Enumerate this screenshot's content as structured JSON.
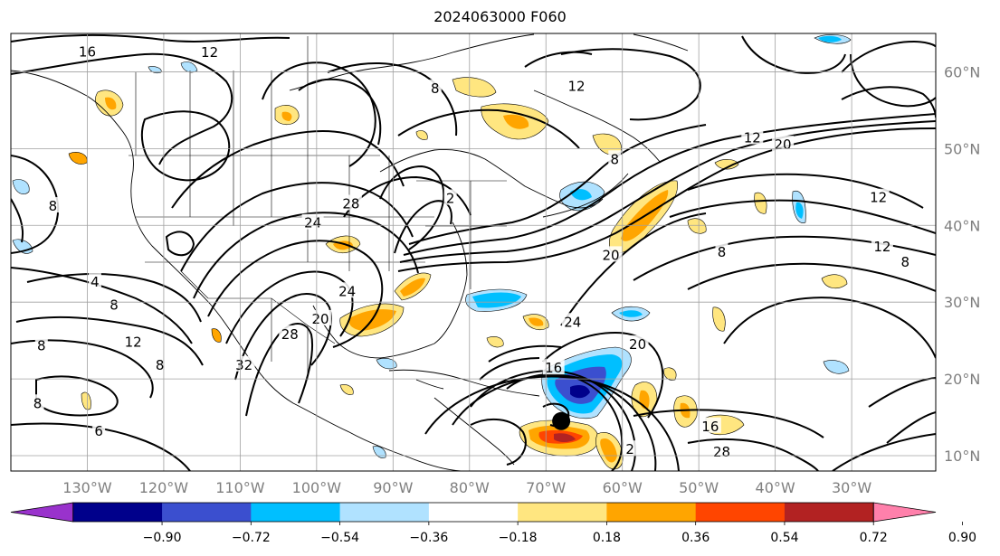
{
  "title": "2024063000 F060",
  "map": {
    "projection": "equirectangular",
    "lon_range": [
      -140,
      -19
    ],
    "lat_range": [
      8,
      65
    ],
    "lon_ticks": [
      {
        "value": -130,
        "label": "130°W"
      },
      {
        "value": -120,
        "label": "120°W"
      },
      {
        "value": -110,
        "label": "110°W"
      },
      {
        "value": -100,
        "label": "100°W"
      },
      {
        "value": -90,
        "label": "90°W"
      },
      {
        "value": -80,
        "label": "80°W"
      },
      {
        "value": -70,
        "label": "70°W"
      },
      {
        "value": -60,
        "label": "60°W"
      },
      {
        "value": -50,
        "label": "50°W"
      },
      {
        "value": -40,
        "label": "40°W"
      },
      {
        "value": -30,
        "label": "30°W"
      }
    ],
    "lat_ticks": [
      {
        "value": 60,
        "label": "60°N"
      },
      {
        "value": 50,
        "label": "50°N"
      },
      {
        "value": 40,
        "label": "40°N"
      },
      {
        "value": 30,
        "label": "30°N"
      },
      {
        "value": 20,
        "label": "20°N"
      },
      {
        "value": 10,
        "label": "10°N"
      }
    ],
    "grid": true,
    "storm_center": {
      "lon": -68,
      "lat": 14.5,
      "marker": "black-dot"
    },
    "contour_labels": [
      {
        "text": "16",
        "lon": -130,
        "lat": 62.6
      },
      {
        "text": "12",
        "lon": -114,
        "lat": 62.5
      },
      {
        "text": "8",
        "lon": -134.5,
        "lat": 42.5
      },
      {
        "text": "4",
        "lon": -129,
        "lat": 32.6
      },
      {
        "text": "8",
        "lon": -126.5,
        "lat": 29.6
      },
      {
        "text": "12",
        "lon": -124,
        "lat": 24.8
      },
      {
        "text": "8",
        "lon": -136,
        "lat": 24.3
      },
      {
        "text": "8",
        "lon": -120.5,
        "lat": 21.8
      },
      {
        "text": "8",
        "lon": -136.5,
        "lat": 16.8
      },
      {
        "text": "6",
        "lon": -128.5,
        "lat": 13.2
      },
      {
        "text": "24",
        "lon": -100.5,
        "lat": 40.3
      },
      {
        "text": "28",
        "lon": -95.5,
        "lat": 42.8
      },
      {
        "text": "24",
        "lon": -96,
        "lat": 31.4
      },
      {
        "text": "20",
        "lon": -99.5,
        "lat": 27.8
      },
      {
        "text": "28",
        "lon": -103.5,
        "lat": 25.8
      },
      {
        "text": "32",
        "lon": -109.5,
        "lat": 21.8
      },
      {
        "text": "2",
        "lon": -82.5,
        "lat": 43.5
      },
      {
        "text": "8",
        "lon": -84.5,
        "lat": 57.8
      },
      {
        "text": "12",
        "lon": -66,
        "lat": 58.1
      },
      {
        "text": "8",
        "lon": -61,
        "lat": 48.6
      },
      {
        "text": "12",
        "lon": -43,
        "lat": 51.4
      },
      {
        "text": "20",
        "lon": -39,
        "lat": 50.5
      },
      {
        "text": "12",
        "lon": -26.5,
        "lat": 43.6
      },
      {
        "text": "12",
        "lon": -26,
        "lat": 37.2
      },
      {
        "text": "8",
        "lon": -23,
        "lat": 35.2
      },
      {
        "text": "8",
        "lon": -47,
        "lat": 36.5
      },
      {
        "text": "20",
        "lon": -61.5,
        "lat": 36.1
      },
      {
        "text": "24",
        "lon": -66.5,
        "lat": 27.4
      },
      {
        "text": "20",
        "lon": -58,
        "lat": 24.5
      },
      {
        "text": "16",
        "lon": -69,
        "lat": 21.4
      },
      {
        "text": "16",
        "lon": -48.5,
        "lat": 13.8
      },
      {
        "text": "28",
        "lon": -47,
        "lat": 10.5
      },
      {
        "text": "2",
        "lon": -59,
        "lat": 10.8
      }
    ]
  },
  "colorbar": {
    "colors": [
      "#9932cc",
      "#00008b",
      "#3b4fcf",
      "#00bfff",
      "#b0e2ff",
      "#ffffff",
      "#ffe680",
      "#ffa500",
      "#ff4500",
      "#b22222",
      "#ff80ab"
    ],
    "labels": [
      "−0.90",
      "−0.72",
      "−0.54",
      "−0.36",
      "−0.18",
      "0.18",
      "0.36",
      "0.54",
      "0.72",
      "0.90"
    ],
    "extend": "both"
  }
}
